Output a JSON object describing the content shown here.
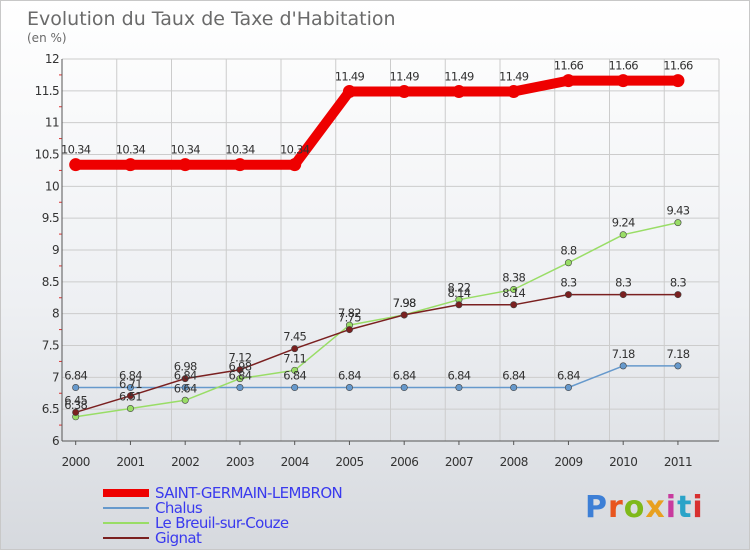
{
  "chart_data": {
    "type": "line",
    "title": "Evolution du Taux de Taxe d'Habitation",
    "subtitle": "(en %)",
    "xlabel": "",
    "ylabel": "",
    "x": [
      "2000",
      "2001",
      "2002",
      "2003",
      "2004",
      "2005",
      "2006",
      "2007",
      "2008",
      "2009",
      "2010",
      "2011"
    ],
    "ylim": [
      6,
      12
    ],
    "yticks": [
      "6",
      "6.5",
      "7",
      "7.5",
      "8",
      "8.5",
      "9",
      "9.5",
      "10",
      "10.5",
      "11",
      "11.5",
      "12"
    ],
    "legend_position": "bottom-left",
    "series": [
      {
        "name": "SAINT-GERMAIN-LEMBRON",
        "color": "#ee0000",
        "values": [
          10.34,
          10.34,
          10.34,
          10.34,
          10.34,
          11.49,
          11.49,
          11.49,
          11.49,
          11.66,
          11.66,
          11.66
        ],
        "labels": [
          "10.34",
          "10.34",
          "10.34",
          "10.34",
          "10.34",
          "11.49",
          "11.49",
          "11.49",
          "11.49",
          "11.66",
          "11.66",
          "11.66"
        ]
      },
      {
        "name": "Chalus",
        "color": "#6699cc",
        "values": [
          6.84,
          6.84,
          6.84,
          6.84,
          6.84,
          6.84,
          6.84,
          6.84,
          6.84,
          6.84,
          7.18,
          7.18
        ],
        "labels": [
          "6.84",
          "6.84",
          "6.84",
          "6.84",
          "6.84",
          "6.84",
          "6.84",
          "6.84",
          "6.84",
          "6.84",
          "7.18",
          "7.18"
        ]
      },
      {
        "name": "Le Breuil-sur-Couze",
        "color": "#99dd66",
        "values": [
          6.38,
          6.51,
          6.64,
          6.98,
          7.11,
          7.82,
          7.98,
          8.22,
          8.38,
          8.8,
          9.24,
          9.43
        ],
        "labels": [
          "6.38",
          "6.51",
          "6.64",
          "6.98",
          "7.11",
          "7.82",
          "7.98",
          "8.22",
          "8.38",
          "8.8",
          "9.24",
          "9.43"
        ]
      },
      {
        "name": "Gignat",
        "color": "#7a2020",
        "values": [
          6.45,
          6.71,
          6.98,
          7.12,
          7.45,
          7.75,
          7.98,
          8.14,
          8.14,
          8.3,
          8.3,
          8.3
        ],
        "labels": [
          "6.45",
          "6.71",
          "6.98",
          "7.12",
          "7.45",
          "7.75",
          "7.98",
          "8.14",
          "8.14",
          "8.3",
          "8.3",
          "8.3"
        ]
      }
    ]
  },
  "branding": {
    "logo": "Proxiti"
  }
}
